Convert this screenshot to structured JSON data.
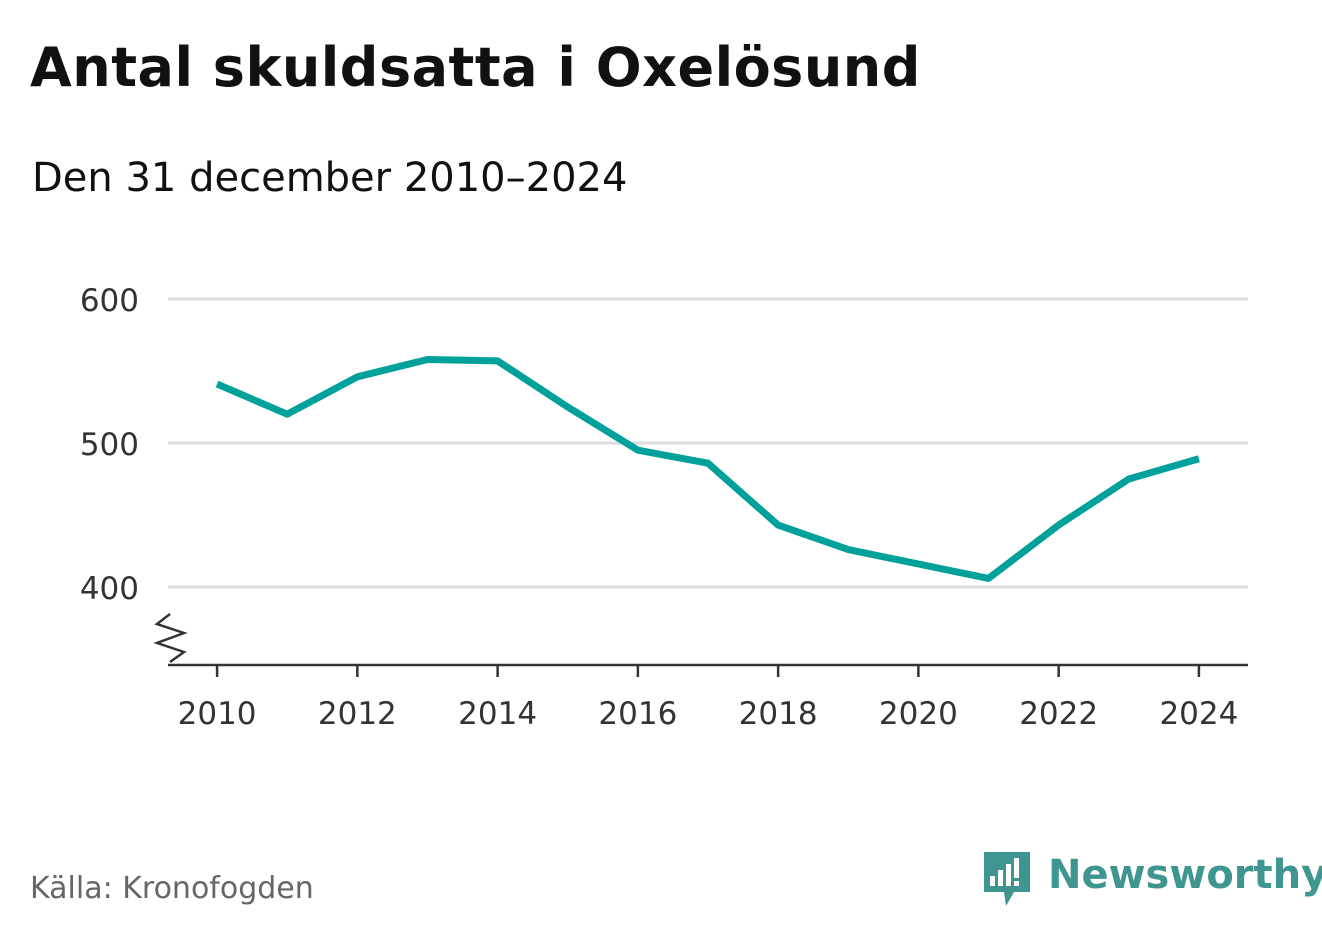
{
  "header": {
    "title": "Antal skuldsatta i Oxelösund",
    "subtitle": "Den 31 december 2010–2024"
  },
  "footer": {
    "source": "Källa: Kronofogden",
    "brand": "Newsworthy",
    "brand_icon": "newsworthy-logo-icon"
  },
  "colors": {
    "line": "#00a19a",
    "grid": "#dddddd",
    "axis": "#333333",
    "brand": "#3f958f"
  },
  "chart_data": {
    "type": "line",
    "title": "Antal skuldsatta i Oxelösund",
    "subtitle": "Den 31 december 2010–2024",
    "xlabel": "",
    "ylabel": "",
    "x": [
      2010,
      2011,
      2012,
      2013,
      2014,
      2015,
      2016,
      2017,
      2018,
      2019,
      2020,
      2021,
      2022,
      2023,
      2024
    ],
    "series": [
      {
        "values": [
          541,
          520,
          546,
          558,
          557,
          525,
          495,
          486,
          443,
          426,
          416,
          406,
          443,
          475,
          489
        ]
      }
    ],
    "xlim": [
      2009.3,
      2024.7
    ],
    "ylim": [
      345,
      600
    ],
    "x_ticks": [
      "2010",
      "2012",
      "2014",
      "2016",
      "2018",
      "2020",
      "2022",
      "2024"
    ],
    "y_ticks": [
      "400",
      "500",
      "600"
    ],
    "grid": true,
    "legend": "none",
    "axis_break": true
  }
}
